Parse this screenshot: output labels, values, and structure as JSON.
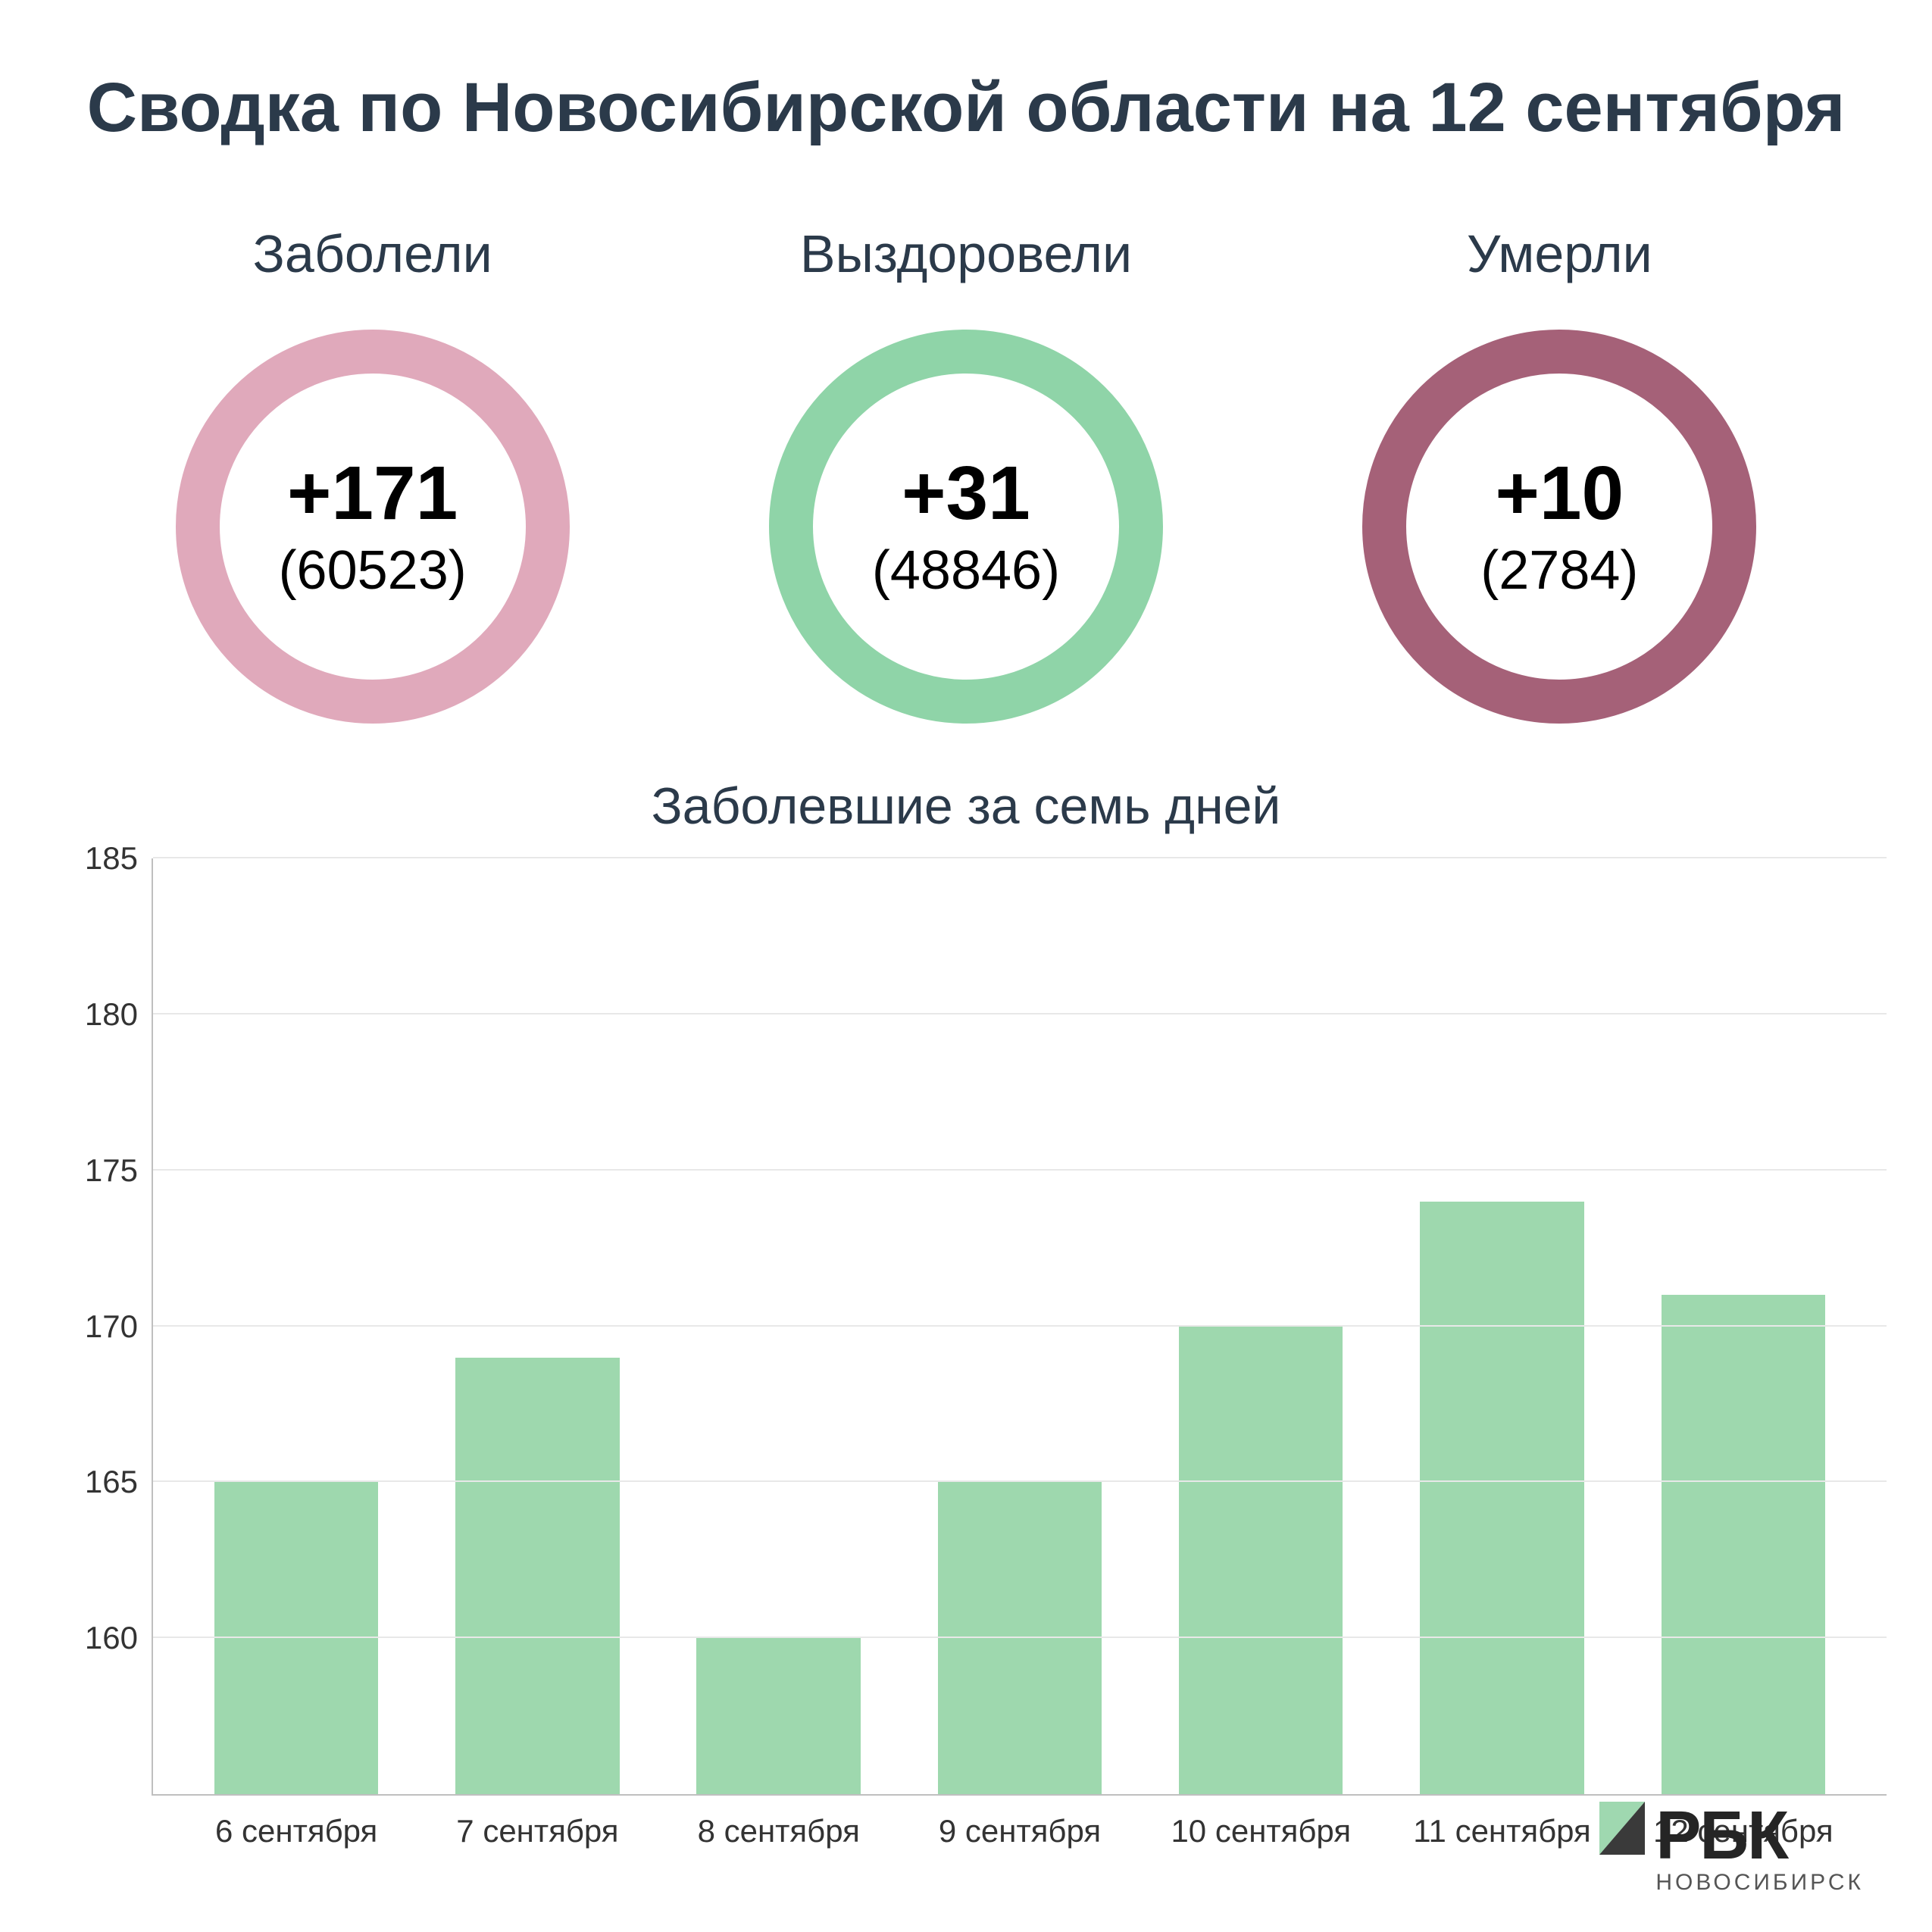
{
  "title": "Сводка по Новосибирской области на 12 сентября",
  "stats": [
    {
      "label": "Заболели",
      "delta": "+171",
      "total": "(60523)",
      "ring_color": "#e0a9bb"
    },
    {
      "label": "Выздоровели",
      "delta": "+31",
      "total": "(48846)",
      "ring_color": "#8fd4a8"
    },
    {
      "label": "Умерли",
      "delta": "+10",
      "total": "(2784)",
      "ring_color": "#a56178"
    }
  ],
  "chart": {
    "title": "Заболевшие за семь дней",
    "type": "bar",
    "ylim": [
      155,
      185
    ],
    "ytick_step": 5,
    "yticks": [
      160,
      165,
      170,
      175,
      180,
      185
    ],
    "categories": [
      "6 сентября",
      "7 сентября",
      "8 сентября",
      "9 сентября",
      "10 сентября",
      "11 сентября",
      "12 сентября"
    ],
    "values": [
      165,
      169,
      160,
      165,
      170,
      174,
      171
    ],
    "bar_color": "#9ed8ae",
    "grid_color": "#e8e8e8",
    "axis_color": "#bfbfbf",
    "background_color": "#ffffff",
    "label_fontsize": 42,
    "title_fontsize": 68,
    "bar_width": 0.68
  },
  "logo": {
    "main": "РБК",
    "sub": "НОВОСИБИРСК",
    "mark_color_a": "#9fd8b0",
    "mark_color_b": "#3a3a3a"
  },
  "colors": {
    "title_text": "#2b3a4a",
    "body_text": "#333333"
  }
}
